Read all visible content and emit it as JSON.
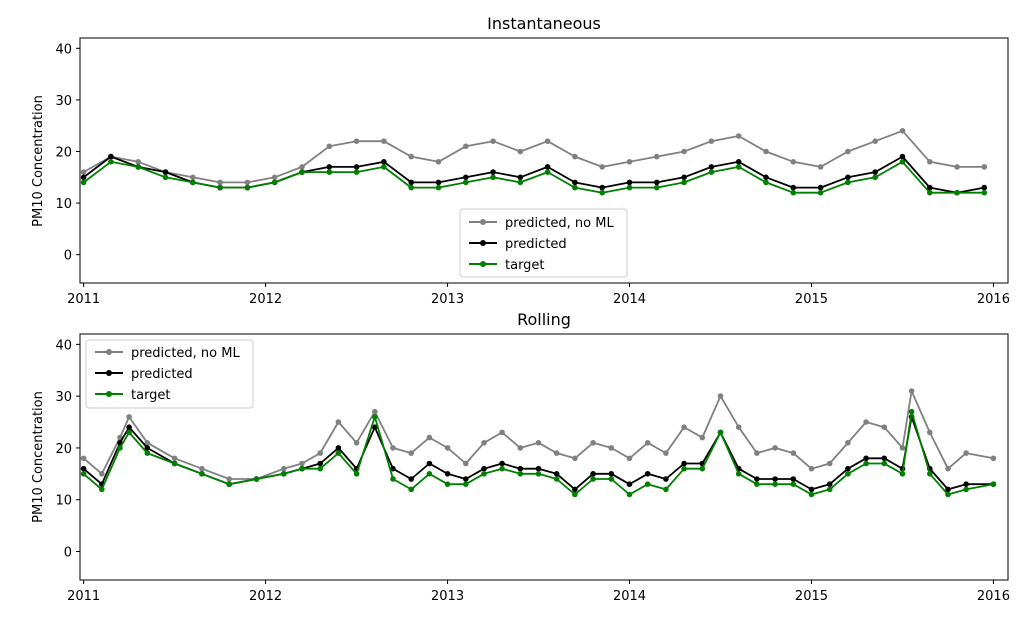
{
  "chart_data": [
    {
      "type": "line",
      "title": "Instantaneous",
      "xlabel": "",
      "ylabel": "PM10 Concentration",
      "xlim": [
        2010.98,
        2016.08
      ],
      "ylim": [
        -5.5,
        42
      ],
      "xticks": [
        2011,
        2012,
        2013,
        2014,
        2015,
        2016
      ],
      "xtick_labels": [
        "2011",
        "2012",
        "2013",
        "2014",
        "2015",
        "2016"
      ],
      "yticks": [
        0,
        10,
        20,
        30,
        40
      ],
      "ytick_labels": [
        "0",
        "10",
        "20",
        "30",
        "40"
      ],
      "grid": false,
      "legend_position": "lower center",
      "series": [
        {
          "name": "predicted, no ML",
          "color": "#808080",
          "x": [
            2011.0,
            2011.15,
            2011.3,
            2011.45,
            2011.6,
            2011.75,
            2011.9,
            2012.05,
            2012.2,
            2012.35,
            2012.5,
            2012.65,
            2012.8,
            2012.95,
            2013.1,
            2013.25,
            2013.4,
            2013.55,
            2013.7,
            2013.85,
            2014.0,
            2014.15,
            2014.3,
            2014.45,
            2014.6,
            2014.75,
            2014.9,
            2015.05,
            2015.2,
            2015.35,
            2015.5,
            2015.65,
            2015.8,
            2015.95
          ],
          "values": [
            16,
            19,
            18,
            16,
            15,
            14,
            14,
            15,
            17,
            21,
            22,
            22,
            19,
            18,
            21,
            22,
            20,
            22,
            19,
            17,
            18,
            19,
            20,
            22,
            23,
            20,
            18,
            17,
            20,
            22,
            24,
            18,
            17,
            17
          ]
        },
        {
          "name": "predicted",
          "color": "#000000",
          "x": [
            2011.0,
            2011.15,
            2011.3,
            2011.45,
            2011.6,
            2011.75,
            2011.9,
            2012.05,
            2012.2,
            2012.35,
            2012.5,
            2012.65,
            2012.8,
            2012.95,
            2013.1,
            2013.25,
            2013.4,
            2013.55,
            2013.7,
            2013.85,
            2014.0,
            2014.15,
            2014.3,
            2014.45,
            2014.6,
            2014.75,
            2014.9,
            2015.05,
            2015.2,
            2015.35,
            2015.5,
            2015.65,
            2015.8,
            2015.95
          ],
          "values": [
            15,
            19,
            17,
            16,
            14,
            13,
            13,
            14,
            16,
            17,
            17,
            18,
            14,
            14,
            15,
            16,
            15,
            17,
            14,
            13,
            14,
            14,
            15,
            17,
            18,
            15,
            13,
            13,
            15,
            16,
            19,
            13,
            12,
            13
          ]
        },
        {
          "name": "target",
          "color": "#008000",
          "x": [
            2011.0,
            2011.15,
            2011.3,
            2011.45,
            2011.6,
            2011.75,
            2011.9,
            2012.05,
            2012.2,
            2012.35,
            2012.5,
            2012.65,
            2012.8,
            2012.95,
            2013.1,
            2013.25,
            2013.4,
            2013.55,
            2013.7,
            2013.85,
            2014.0,
            2014.15,
            2014.3,
            2014.45,
            2014.6,
            2014.75,
            2014.9,
            2015.05,
            2015.2,
            2015.35,
            2015.5,
            2015.65,
            2015.8,
            2015.95
          ],
          "values": [
            14,
            18,
            17,
            15,
            14,
            13,
            13,
            14,
            16,
            16,
            16,
            17,
            13,
            13,
            14,
            15,
            14,
            16,
            13,
            12,
            13,
            13,
            14,
            16,
            17,
            14,
            12,
            12,
            14,
            15,
            18,
            12,
            12,
            12
          ]
        }
      ]
    },
    {
      "type": "line",
      "title": "Rolling",
      "xlabel": "",
      "ylabel": "PM10 Concentration",
      "xlim": [
        2010.98,
        2016.08
      ],
      "ylim": [
        -5.5,
        42
      ],
      "xticks": [
        2011,
        2012,
        2013,
        2014,
        2015,
        2016
      ],
      "xtick_labels": [
        "2011",
        "2012",
        "2013",
        "2014",
        "2015",
        "2016"
      ],
      "yticks": [
        0,
        10,
        20,
        30,
        40
      ],
      "ytick_labels": [
        "0",
        "10",
        "20",
        "30",
        "40"
      ],
      "grid": false,
      "legend_position": "upper left",
      "series": [
        {
          "name": "predicted, no ML",
          "color": "#808080",
          "x": [
            2011.0,
            2011.1,
            2011.2,
            2011.25,
            2011.35,
            2011.5,
            2011.65,
            2011.8,
            2011.95,
            2012.1,
            2012.2,
            2012.3,
            2012.4,
            2012.5,
            2012.6,
            2012.7,
            2012.8,
            2012.9,
            2013.0,
            2013.1,
            2013.2,
            2013.3,
            2013.4,
            2013.5,
            2013.6,
            2013.7,
            2013.8,
            2013.9,
            2014.0,
            2014.1,
            2014.2,
            2014.3,
            2014.4,
            2014.5,
            2014.6,
            2014.7,
            2014.8,
            2014.9,
            2015.0,
            2015.1,
            2015.2,
            2015.3,
            2015.4,
            2015.5,
            2015.55,
            2015.65,
            2015.75,
            2015.85,
            2016.0
          ],
          "values": [
            18,
            15,
            22,
            26,
            21,
            18,
            16,
            14,
            14,
            16,
            17,
            19,
            25,
            21,
            27,
            20,
            19,
            22,
            20,
            17,
            21,
            23,
            20,
            21,
            19,
            18,
            21,
            20,
            18,
            21,
            19,
            24,
            22,
            30,
            24,
            19,
            20,
            19,
            16,
            17,
            21,
            25,
            24,
            20,
            31,
            23,
            16,
            19,
            18
          ]
        },
        {
          "name": "predicted",
          "color": "#000000",
          "x": [
            2011.0,
            2011.1,
            2011.2,
            2011.25,
            2011.35,
            2011.5,
            2011.65,
            2011.8,
            2011.95,
            2012.1,
            2012.2,
            2012.3,
            2012.4,
            2012.5,
            2012.6,
            2012.7,
            2012.8,
            2012.9,
            2013.0,
            2013.1,
            2013.2,
            2013.3,
            2013.4,
            2013.5,
            2013.6,
            2013.7,
            2013.8,
            2013.9,
            2014.0,
            2014.1,
            2014.2,
            2014.3,
            2014.4,
            2014.5,
            2014.6,
            2014.7,
            2014.8,
            2014.9,
            2015.0,
            2015.1,
            2015.2,
            2015.3,
            2015.4,
            2015.5,
            2015.55,
            2015.65,
            2015.75,
            2015.85,
            2016.0
          ],
          "values": [
            16,
            13,
            21,
            24,
            20,
            17,
            15,
            13,
            14,
            15,
            16,
            17,
            20,
            16,
            24,
            16,
            14,
            17,
            15,
            14,
            16,
            17,
            16,
            16,
            15,
            12,
            15,
            15,
            13,
            15,
            14,
            17,
            17,
            23,
            16,
            14,
            14,
            14,
            12,
            13,
            16,
            18,
            18,
            16,
            26,
            16,
            12,
            13,
            13
          ]
        },
        {
          "name": "target",
          "color": "#008000",
          "x": [
            2011.0,
            2011.1,
            2011.2,
            2011.25,
            2011.35,
            2011.5,
            2011.65,
            2011.8,
            2011.95,
            2012.1,
            2012.2,
            2012.3,
            2012.4,
            2012.5,
            2012.6,
            2012.7,
            2012.8,
            2012.9,
            2013.0,
            2013.1,
            2013.2,
            2013.3,
            2013.4,
            2013.5,
            2013.6,
            2013.7,
            2013.8,
            2013.9,
            2014.0,
            2014.1,
            2014.2,
            2014.3,
            2014.4,
            2014.5,
            2014.6,
            2014.7,
            2014.8,
            2014.9,
            2015.0,
            2015.1,
            2015.2,
            2015.3,
            2015.4,
            2015.5,
            2015.55,
            2015.65,
            2015.75,
            2015.85,
            2016.0
          ],
          "values": [
            15,
            12,
            20,
            23,
            19,
            17,
            15,
            13,
            14,
            15,
            16,
            16,
            19,
            15,
            26,
            14,
            12,
            15,
            13,
            13,
            15,
            16,
            15,
            15,
            14,
            11,
            14,
            14,
            11,
            13,
            12,
            16,
            16,
            23,
            15,
            13,
            13,
            13,
            11,
            12,
            15,
            17,
            17,
            15,
            27,
            15,
            11,
            12,
            13
          ]
        }
      ]
    }
  ]
}
